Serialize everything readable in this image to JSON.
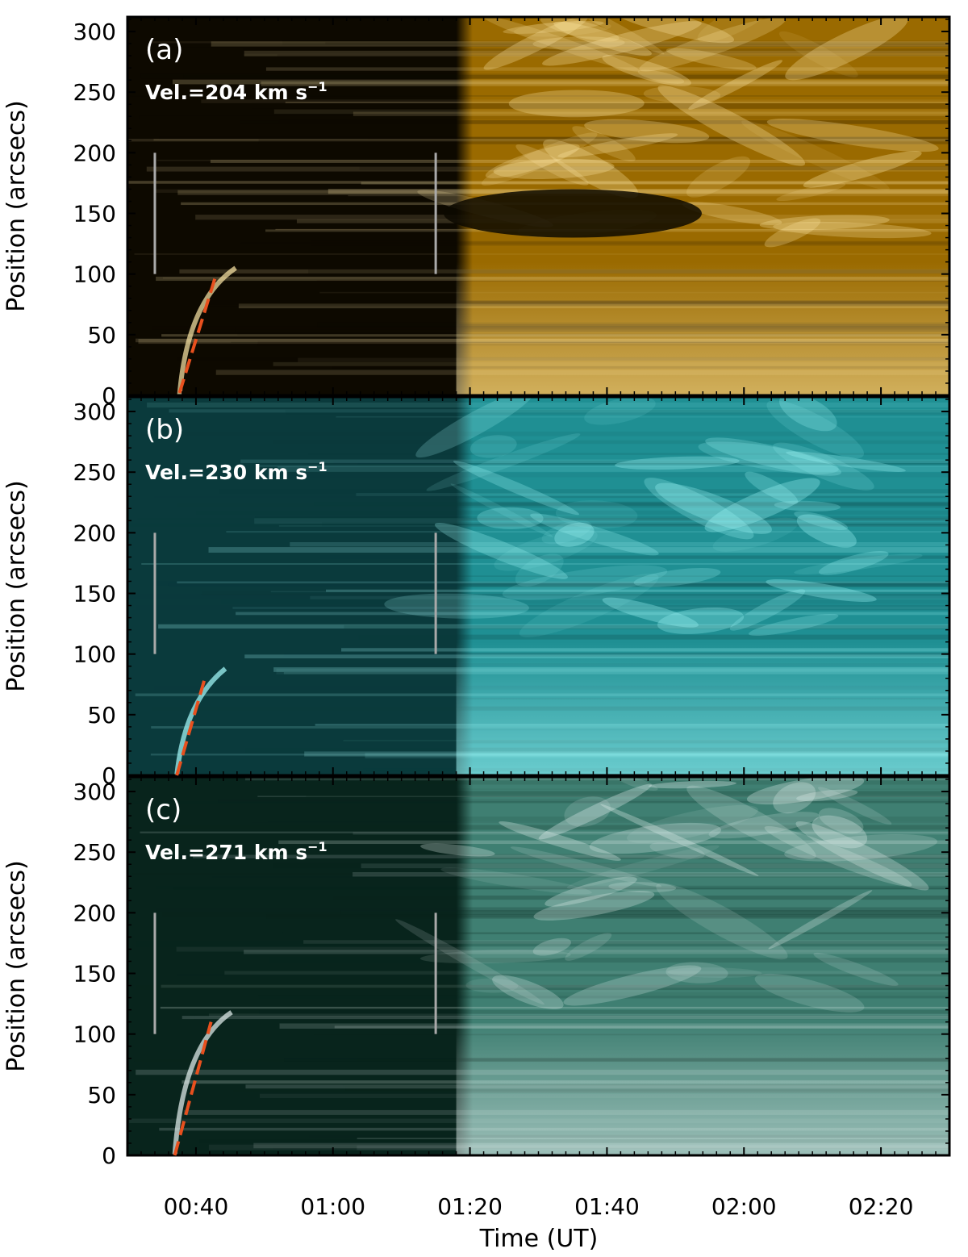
{
  "chart_data": {
    "type": "heatmap",
    "xlabel": "Time (UT)",
    "ylabel": "Position (arcsecs)",
    "x_tick_labels": [
      "00:40",
      "01:00",
      "01:20",
      "01:40",
      "02:00",
      "02:20"
    ],
    "x_ticks_minutes": [
      40,
      60,
      80,
      100,
      120,
      140
    ],
    "xlim_minutes": [
      30,
      150
    ],
    "y_ticks": [
      0,
      50,
      100,
      150,
      200,
      250,
      300
    ],
    "ylim": [
      0,
      312
    ],
    "panels": [
      {
        "label": "(a)",
        "velocity_text": "Vel.=204",
        "velocity_unit": "km s",
        "velocity_exp": "−1",
        "colors": {
          "dark": "#0d0900",
          "mid": "#9a6a00",
          "bright": "#ffe9a8"
        },
        "fit_line": {
          "x_minutes": [
            37.6,
            42.8
          ],
          "y": [
            2,
            97
          ]
        },
        "markers": [
          {
            "x_minutes": 34,
            "y": [
              100,
              200
            ]
          },
          {
            "x_minutes": 75,
            "y": [
              100,
              200
            ]
          }
        ]
      },
      {
        "label": "(b)",
        "velocity_text": "Vel.=230",
        "velocity_unit": "km s",
        "velocity_exp": "−1",
        "colors": {
          "dark": "#0a3a3c",
          "mid": "#1f8f93",
          "bright": "#a8ffff"
        },
        "fit_line": {
          "x_minutes": [
            37.2,
            41.3
          ],
          "y": [
            0,
            80
          ]
        },
        "markers": [
          {
            "x_minutes": 34,
            "y": [
              100,
              200
            ]
          },
          {
            "x_minutes": 75,
            "y": [
              100,
              200
            ]
          }
        ]
      },
      {
        "label": "(c)",
        "velocity_text": "Vel.=271",
        "velocity_unit": "km s",
        "velocity_exp": "−1",
        "colors": {
          "dark": "#08241c",
          "mid": "#3f7f72",
          "bright": "#e8f4f2"
        },
        "fit_line": {
          "x_minutes": [
            36.9,
            42.2
          ],
          "y": [
            0,
            110
          ]
        },
        "markers": [
          {
            "x_minutes": 34,
            "y": [
              100,
              200
            ]
          },
          {
            "x_minutes": 75,
            "y": [
              100,
              200
            ]
          }
        ]
      }
    ]
  }
}
